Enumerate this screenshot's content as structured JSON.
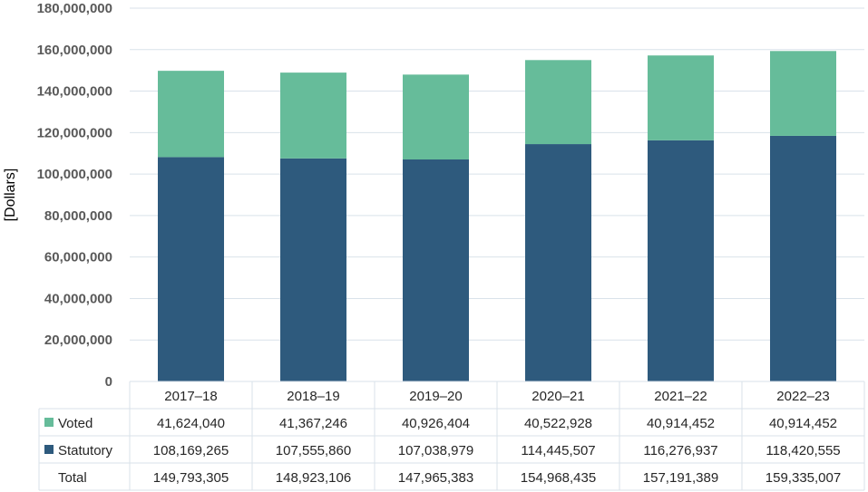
{
  "chart_data": {
    "type": "bar",
    "stacked": true,
    "categories": [
      "2017–18",
      "2018–19",
      "2019–20",
      "2020–21",
      "2021–22",
      "2022–23"
    ],
    "series": [
      {
        "name": "Statutory",
        "color": "#2e5a7d",
        "values": [
          108169265,
          107555860,
          107038979,
          114445507,
          116276937,
          118420555
        ],
        "labels": [
          "108,169,265",
          "107,555,860",
          "107,038,979",
          "114,445,507",
          "116,276,937",
          "118,420,555"
        ]
      },
      {
        "name": "Voted",
        "color": "#66bc9a",
        "values": [
          41624040,
          41367246,
          40926404,
          40522928,
          40914452,
          40914452
        ],
        "labels": [
          "41,624,040",
          "41,367,246",
          "40,926,404",
          "40,522,928",
          "40,914,452",
          "40,914,452"
        ]
      }
    ],
    "total": {
      "name": "Total",
      "labels": [
        "149,793,305",
        "148,923,106",
        "147,965,383",
        "154,968,435",
        "157,191,389",
        "159,335,007"
      ]
    },
    "table_row_order": [
      "Voted",
      "Statutory",
      "Total"
    ],
    "ylabel": "[Dollars]",
    "ylim": [
      0,
      180000000
    ],
    "yticks": [
      0,
      20000000,
      40000000,
      60000000,
      80000000,
      100000000,
      120000000,
      140000000,
      160000000,
      180000000
    ],
    "ytick_labels": [
      "0",
      "20,000,000",
      "40,000,000",
      "60,000,000",
      "80,000,000",
      "100,000,000",
      "120,000,000",
      "140,000,000",
      "160,000,000",
      "180,000,000"
    ],
    "grid": true,
    "legend": "data-table-rows",
    "gridline_color": "#d9e2ea"
  }
}
